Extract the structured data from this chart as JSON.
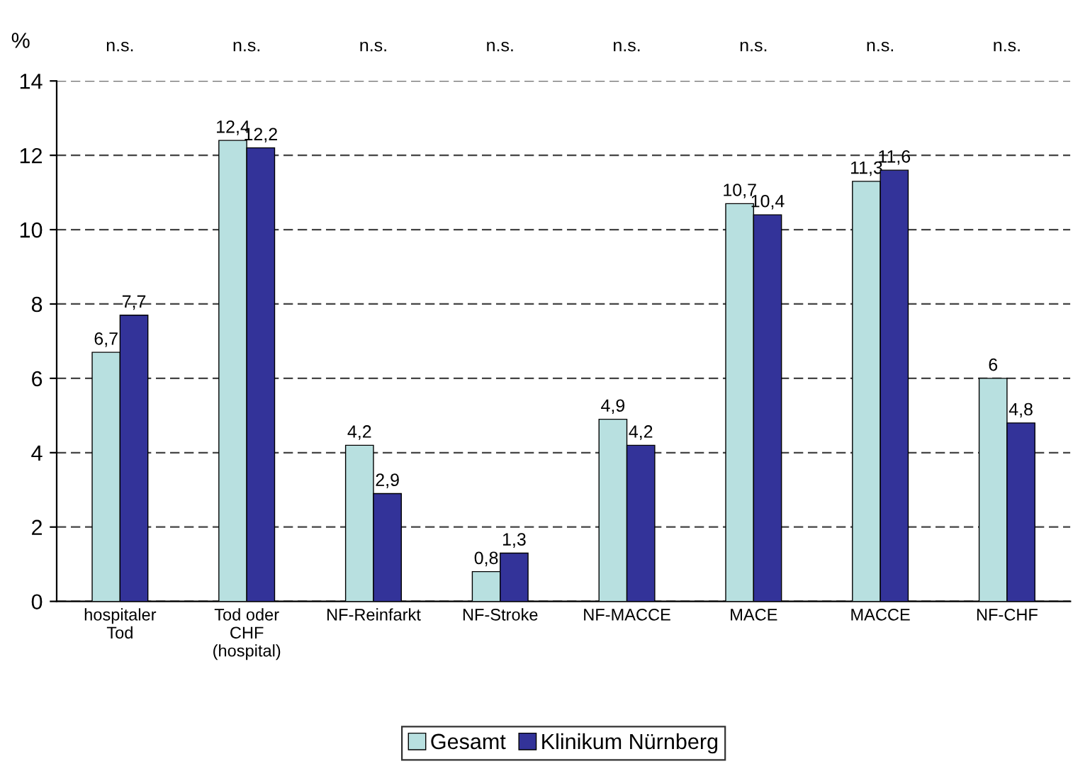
{
  "chart_data": {
    "type": "bar",
    "categories": [
      "hospitaler\nTod",
      "Tod oder\nCHF\n(hospital)",
      "NF-Reinfarkt",
      "NF-Stroke",
      "NF-MACCE",
      "MACE",
      "MACCE",
      "NF-CHF"
    ],
    "series": [
      {
        "name": "Gesamt",
        "color": "#b8e0e0",
        "values": [
          6.7,
          12.4,
          4.2,
          0.8,
          4.9,
          10.7,
          11.3,
          6
        ],
        "value_labels": [
          "6,7",
          "12,4",
          "4,2",
          "0,8",
          "4,9",
          "10,7",
          "11,3",
          "6"
        ]
      },
      {
        "name": "Klinikum Nürnberg",
        "color": "#333399",
        "values": [
          7.7,
          12.2,
          2.9,
          1.3,
          4.2,
          10.4,
          11.6,
          4.8
        ],
        "value_labels": [
          "7,7",
          "12,2",
          "2,9",
          "1,3",
          "4,2",
          "10,4",
          "11,6",
          "4,8"
        ]
      }
    ],
    "ylabel": "%",
    "annotations": [
      "n.s.",
      "n.s.",
      "n.s.",
      "n.s.",
      "n.s.",
      "n.s.",
      "n.s.",
      "n.s."
    ],
    "ylim": [
      0,
      14
    ],
    "yticks": [
      0,
      2,
      4,
      6,
      8,
      10,
      12,
      14
    ],
    "grid": "y",
    "line_style": "dashed",
    "legend": "bottom"
  }
}
